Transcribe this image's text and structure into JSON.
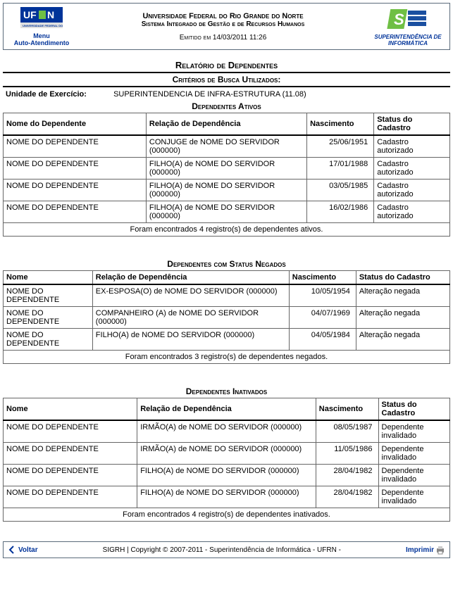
{
  "header": {
    "menu_label": "Menu",
    "auto_label": "Auto-Atendimento",
    "university": "Universidade Federal do Rio Grande do Norte",
    "system": "Sistema Integrado de Gestão e de Recursos Humanos",
    "emitted": "Emitido em 14/03/2011 11:26",
    "right_label": "SUPERINTENDÊNCIA DE INFORMÁTICA"
  },
  "report_title": "Relatório de Dependentes",
  "criteria": {
    "title": "Critérios de Busca Utilizados:",
    "label": "Unidade de Exercício:",
    "value": "SUPERINTENDENCIA DE INFRA-ESTRUTURA (11.08)"
  },
  "sections": {
    "ativos": {
      "title": "Dependentes Ativos",
      "columns": [
        "Nome do Dependente",
        "Relação de Dependência",
        "Nascimento",
        "Status do Cadastro"
      ],
      "rows": [
        [
          "NOME DO DEPENDENTE",
          "CONJUGE de NOME DO SERVIDOR (000000)",
          "25/06/1951",
          "Cadastro autorizado"
        ],
        [
          "NOME DO DEPENDENTE",
          "FILHO(A) de NOME DO SERVIDOR (000000)",
          "17/01/1988",
          "Cadastro autorizado"
        ],
        [
          "NOME DO DEPENDENTE",
          "FILHO(A) de NOME DO SERVIDOR (000000)",
          "03/05/1985",
          "Cadastro autorizado"
        ],
        [
          "NOME DO DEPENDENTE",
          "FILHO(A) de NOME DO SERVIDOR (000000)",
          "16/02/1986",
          "Cadastro autorizado"
        ]
      ],
      "summary": "Foram encontrados 4 registro(s) de dependentes ativos."
    },
    "negados": {
      "title": "Dependentes com Status Negados",
      "columns": [
        "Nome",
        "Relação de Dependência",
        "Nascimento",
        "Status do Cadastro"
      ],
      "rows": [
        [
          "NOME DO DEPENDENTE",
          "EX-ESPOSA(O) de NOME DO SERVIDOR (000000)",
          "10/05/1954",
          "Alteração negada"
        ],
        [
          "NOME DO DEPENDENTE",
          "COMPANHEIRO (A) de NOME DO SERVIDOR (000000)",
          "04/07/1969",
          "Alteração negada"
        ],
        [
          "NOME DO DEPENDENTE",
          "FILHO(A) de NOME DO SERVIDOR (000000)",
          "04/05/1984",
          "Alteração negada"
        ]
      ],
      "summary": "Foram encontrados 3 registro(s) de dependentes negados."
    },
    "inativados": {
      "title": "Dependentes Inativados",
      "columns": [
        "Nome",
        "Relação de Dependência",
        "Nascimento",
        "Status do Cadastro"
      ],
      "rows": [
        [
          "NOME DO DEPENDENTE",
          "IRMÃO(A) de NOME DO SERVIDOR (000000)",
          "08/05/1987",
          "Dependente invalidado"
        ],
        [
          "NOME DO DEPENDENTE",
          "IRMÃO(A) de NOME DO SERVIDOR (000000)",
          "11/05/1986",
          "Dependente invalidado"
        ],
        [
          "NOME DO DEPENDENTE",
          "FILHO(A) de NOME DO SERVIDOR (000000)",
          "28/04/1982",
          "Dependente invalidado"
        ],
        [
          "NOME DO DEPENDENTE",
          "FILHO(A) de NOME DO SERVIDOR (000000)",
          "28/04/1982",
          "Dependente invalidado"
        ]
      ],
      "summary": "Foram encontrados 4 registro(s) de dependentes inativados."
    }
  },
  "footer": {
    "back": "Voltar",
    "copyright": "SIGRH | Copyright © 2007-2011 - Superintendência de Informática - UFRN -",
    "print": "Imprimir"
  },
  "layout": {
    "col_widths_ativos": [
      "32%",
      "36%",
      "15%",
      "17%"
    ],
    "col_widths_negados": [
      "20%",
      "44%",
      "15%",
      "21%"
    ],
    "col_widths_inativados": [
      "30%",
      "40%",
      "14%",
      "16%"
    ]
  },
  "colors": {
    "border": "#5a6a7a",
    "link": "#003399",
    "accent_green": "#6fbf44",
    "accent_blue": "#1a4fa0"
  }
}
